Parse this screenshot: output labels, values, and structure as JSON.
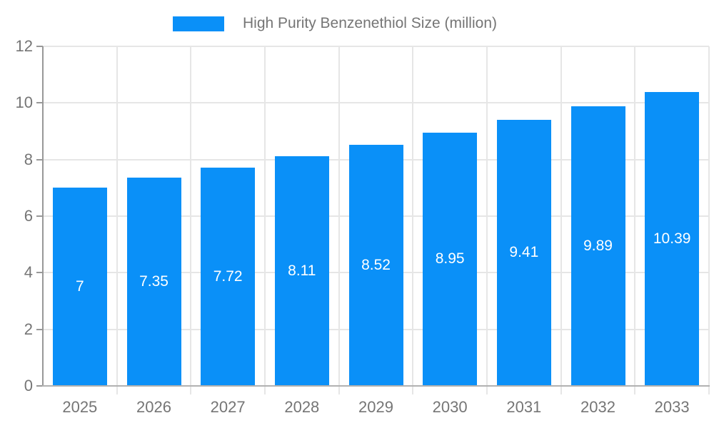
{
  "legend": {
    "title": "High Purity Benzenethiol Size (million)"
  },
  "chart_data": {
    "type": "bar",
    "title": "High Purity Benzenethiol Size (million)",
    "categories": [
      "2025",
      "2026",
      "2027",
      "2028",
      "2029",
      "2030",
      "2031",
      "2032",
      "2033"
    ],
    "values": [
      7,
      7.35,
      7.72,
      8.11,
      8.52,
      8.95,
      9.41,
      9.89,
      10.39
    ],
    "bar_labels": [
      "7",
      "7.35",
      "7.72",
      "8.11",
      "8.52",
      "8.95",
      "9.41",
      "9.89",
      "10.39"
    ],
    "xlabel": "",
    "ylabel": "",
    "ylim": [
      0,
      12
    ],
    "yticks": [
      0,
      2,
      4,
      6,
      8,
      10,
      12
    ],
    "grid": true,
    "legend_position": "top",
    "colors": {
      "bar": "#0a90f8",
      "grid": "#e6e6e6",
      "axis_line": "#b1b1b1",
      "y_axis_line": "#989898",
      "tick_text": "#757575",
      "bar_label_text": "#ffffff"
    }
  }
}
